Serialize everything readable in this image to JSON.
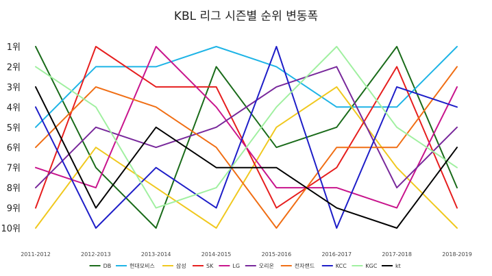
{
  "chart_data": {
    "type": "line",
    "title": "KBL 리그 시즌별 순위 변동폭",
    "categories": [
      "2011-2012",
      "2012-2013",
      "2013-2014",
      "2014-2015",
      "2015-2016",
      "2016-2017",
      "2017-2018",
      "2018-2019"
    ],
    "y_tick_labels": [
      "1위",
      "2위",
      "3위",
      "4위",
      "5위",
      "6위",
      "7위",
      "8위",
      "9위",
      "10위"
    ],
    "ylim": [
      1,
      10
    ],
    "y_inverted": true,
    "grid": false,
    "legend_position": "bottom",
    "series": [
      {
        "name": "DB",
        "color": "#1a6b1a",
        "values": [
          1,
          7,
          10,
          2,
          6,
          5,
          1,
          8
        ]
      },
      {
        "name": "현대모비스",
        "color": "#1eb4e6",
        "values": [
          5,
          2,
          2,
          1,
          2,
          4,
          4,
          1
        ]
      },
      {
        "name": "삼성",
        "color": "#f0c81e",
        "values": [
          10,
          6,
          8,
          10,
          5,
          3,
          7,
          10
        ]
      },
      {
        "name": "SK",
        "color": "#e61e1e",
        "values": [
          9,
          1,
          3,
          3,
          9,
          7,
          2,
          9
        ]
      },
      {
        "name": "LG",
        "color": "#c8148c",
        "values": [
          7,
          8,
          1,
          4,
          8,
          8,
          9,
          3
        ]
      },
      {
        "name": "오리온",
        "color": "#78289b",
        "values": [
          8,
          5,
          6,
          5,
          3,
          2,
          8,
          5
        ]
      },
      {
        "name": "전자랜드",
        "color": "#f06e14",
        "values": [
          6,
          3,
          4,
          6,
          10,
          6,
          6,
          2
        ]
      },
      {
        "name": "KCC",
        "color": "#1e1ec8",
        "values": [
          4,
          10,
          7,
          9,
          1,
          10,
          3,
          4
        ]
      },
      {
        "name": "KGC",
        "color": "#a0f0a0",
        "values": [
          2,
          4,
          9,
          8,
          4,
          1,
          5,
          7
        ]
      },
      {
        "name": "kt",
        "color": "#000000",
        "values": [
          3,
          9,
          5,
          7,
          7,
          9,
          10,
          6
        ]
      }
    ]
  }
}
